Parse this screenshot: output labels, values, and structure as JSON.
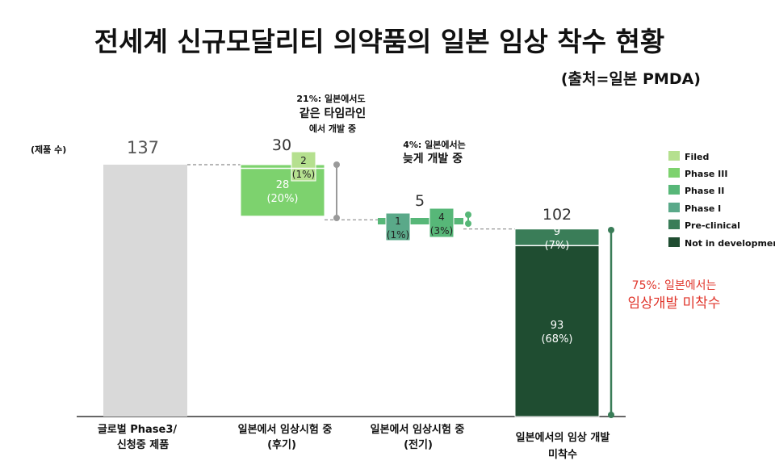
{
  "title": "전세계 신규모달리티 의약품의 일본 임상 착수 현황",
  "source": "(출처=일본 PMDA)",
  "unit_label": "(제품 수)",
  "colors": {
    "Filed": "#b5e08f",
    "Phase III": "#7dd26e",
    "Phase II": "#57b778",
    "Phase I": "#5aa989",
    "Pre-clinical": "#3a7d58",
    "Not in development": "#1f4d31",
    "total": "#d9d9d9",
    "red": "#e0352b"
  },
  "annotations": {
    "late": {
      "line1": "21%: 일본에서도",
      "line2": "같은 타임라인",
      "line3": "에서 개발 중"
    },
    "early": {
      "line1": "4%: 일본에서는",
      "line2": "늦게 개발 중"
    },
    "notstarted": {
      "line1": "75%: 일본에서는",
      "line2": "임상개발 미착수"
    }
  },
  "chart_data": {
    "type": "bar",
    "subtype": "waterfall",
    "title": "전세계 신규모달리티 의약품의 일본 임상 착수 현황",
    "ylabel": "(제품 수)",
    "ylim": [
      0,
      137
    ],
    "grid": false,
    "legend_position": "right",
    "legend": [
      "Filed",
      "Phase III",
      "Phase II",
      "Phase I",
      "Pre-clinical",
      "Not in development"
    ],
    "categories": [
      {
        "line1": "글로벌 Phase3/",
        "line2": "신청중 제품",
        "total": 137
      },
      {
        "line1": "일본에서 임상시험 중",
        "line2": "(후기)",
        "total": 30
      },
      {
        "line1": "일본에서 임상시험 중",
        "line2": "(전기)",
        "total": 5
      },
      {
        "line1": "일본에서의 임상 개발",
        "line2": "미착수",
        "total": 102
      }
    ],
    "segments": [
      {
        "category": 0,
        "stage": "total",
        "value": 137
      },
      {
        "category": 1,
        "stage": "Phase III",
        "value": 28,
        "label": "28",
        "pct": "(20%)"
      },
      {
        "category": 1,
        "stage": "Filed",
        "value": 2,
        "label": "2",
        "pct": "(1%)"
      },
      {
        "category": 2,
        "stage": "Phase I",
        "value": 1,
        "label": "1",
        "pct": "(1%)"
      },
      {
        "category": 2,
        "stage": "Phase II",
        "value": 4,
        "label": "4",
        "pct": "(3%)"
      },
      {
        "category": 3,
        "stage": "Not in development",
        "value": 93,
        "label": "93",
        "pct": "(68%)"
      },
      {
        "category": 3,
        "stage": "Pre-clinical",
        "value": 9,
        "label": "9",
        "pct": "(7%)"
      }
    ]
  }
}
